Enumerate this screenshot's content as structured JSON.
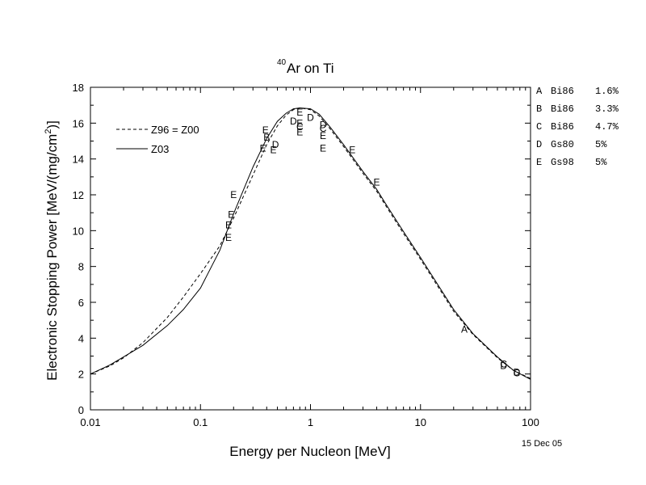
{
  "chart_data": {
    "type": "line",
    "title_superscript": "40",
    "title": "Ar on Ti",
    "xlabel": "Energy per Nucleon [MeV]",
    "ylabel_main": "Electronic Stopping Power [MeV/(mg/cm",
    "ylabel_sup": "2",
    "ylabel_end": ")]",
    "xscale": "log",
    "xlim": [
      0.01,
      100
    ],
    "ylim": [
      0,
      18
    ],
    "x_ticks": [
      "0.01",
      "0.1",
      "1",
      "10",
      "100"
    ],
    "y_ticks": [
      "0",
      "2",
      "4",
      "6",
      "8",
      "10",
      "12",
      "14",
      "16",
      "18"
    ],
    "date_label": "15 Dec 05",
    "grid": false,
    "legend_position": "upper-left",
    "series": [
      {
        "name": "Z96 = Z00",
        "style": "dashed",
        "x": [
          0.01,
          0.015,
          0.02,
          0.03,
          0.05,
          0.07,
          0.1,
          0.15,
          0.2,
          0.3,
          0.4,
          0.5,
          0.6,
          0.7,
          0.8,
          1.0,
          1.2,
          1.5,
          2.0,
          3.0,
          4.0,
          5.0,
          7.0,
          10.0,
          20.0,
          30.0,
          50.0,
          70.0,
          100.0
        ],
        "y": [
          2.0,
          2.45,
          2.9,
          3.75,
          5.15,
          6.3,
          7.6,
          9.15,
          10.7,
          13.1,
          14.8,
          15.85,
          16.45,
          16.75,
          16.85,
          16.75,
          16.4,
          15.7,
          14.7,
          13.2,
          12.2,
          11.25,
          9.85,
          8.4,
          5.5,
          4.2,
          2.9,
          2.2,
          1.75
        ]
      },
      {
        "name": "Z03",
        "style": "solid",
        "x": [
          0.01,
          0.015,
          0.02,
          0.03,
          0.05,
          0.07,
          0.1,
          0.15,
          0.2,
          0.3,
          0.4,
          0.5,
          0.6,
          0.7,
          0.8,
          1.0,
          1.2,
          1.5,
          2.0,
          3.0,
          4.0,
          5.0,
          7.0,
          10.0,
          20.0,
          30.0,
          50.0,
          70.0,
          100.0
        ],
        "y": [
          2.0,
          2.5,
          2.95,
          3.6,
          4.7,
          5.6,
          6.8,
          8.9,
          10.95,
          13.55,
          15.15,
          16.1,
          16.55,
          16.8,
          16.85,
          16.8,
          16.5,
          15.8,
          14.8,
          13.3,
          12.3,
          11.35,
          9.95,
          8.5,
          5.6,
          4.25,
          2.95,
          2.2,
          1.7
        ]
      }
    ],
    "measurements": [
      {
        "label": "A",
        "x": 25.0,
        "y": 4.5
      },
      {
        "label": "B",
        "x": 0.4,
        "y": 15.2
      },
      {
        "label": "C",
        "x": 0.8,
        "y": 15.8
      },
      {
        "label": "C",
        "x": 1.3,
        "y": 15.7
      },
      {
        "label": "C",
        "x": 57.0,
        "y": 2.55
      },
      {
        "label": "C",
        "x": 75.0,
        "y": 2.05
      },
      {
        "label": "D",
        "x": 0.48,
        "y": 14.8
      },
      {
        "label": "D",
        "x": 0.7,
        "y": 16.1
      },
      {
        "label": "D",
        "x": 1.0,
        "y": 16.3
      },
      {
        "label": "D",
        "x": 1.3,
        "y": 15.9
      },
      {
        "label": "D",
        "x": 57.0,
        "y": 2.45
      },
      {
        "label": "D",
        "x": 75.0,
        "y": 2.1
      },
      {
        "label": "E",
        "x": 0.18,
        "y": 9.6
      },
      {
        "label": "E",
        "x": 0.18,
        "y": 10.3
      },
      {
        "label": "E",
        "x": 0.19,
        "y": 10.9
      },
      {
        "label": "E",
        "x": 0.2,
        "y": 12.0
      },
      {
        "label": "E",
        "x": 0.37,
        "y": 14.6
      },
      {
        "label": "E",
        "x": 0.39,
        "y": 15.6
      },
      {
        "label": "E",
        "x": 0.46,
        "y": 14.5
      },
      {
        "label": "E",
        "x": 0.8,
        "y": 15.5
      },
      {
        "label": "E",
        "x": 0.8,
        "y": 16.0
      },
      {
        "label": "E",
        "x": 0.8,
        "y": 16.6
      },
      {
        "label": "E",
        "x": 1.3,
        "y": 14.6
      },
      {
        "label": "E",
        "x": 1.3,
        "y": 15.3
      },
      {
        "label": "E",
        "x": 2.4,
        "y": 14.5
      },
      {
        "label": "E",
        "x": 4.0,
        "y": 12.7
      }
    ],
    "references": [
      {
        "code": "A",
        "source": "Bi86",
        "error": "1.6%"
      },
      {
        "code": "B",
        "source": "Bi86",
        "error": "3.3%"
      },
      {
        "code": "C",
        "source": "Bi86",
        "error": "4.7%"
      },
      {
        "code": "D",
        "source": "Gs80",
        "error": "5%"
      },
      {
        "code": "E",
        "source": "Gs98",
        "error": "5%"
      }
    ]
  }
}
